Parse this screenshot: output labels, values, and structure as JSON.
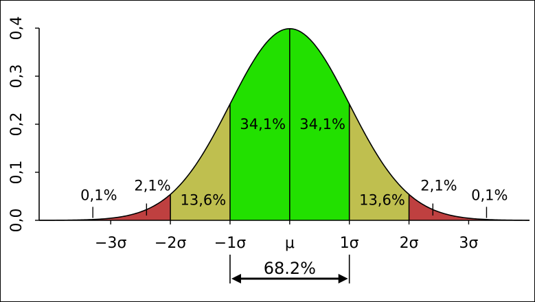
{
  "chart_data": {
    "type": "area",
    "title": "",
    "xlabel": "",
    "ylabel": "",
    "distribution": "normal",
    "xlim": [
      -4.2,
      4.02
    ],
    "ylim": [
      0,
      0.4
    ],
    "y_ticks": [
      {
        "value": 0.0,
        "label": "0,0"
      },
      {
        "value": 0.1,
        "label": "0,1"
      },
      {
        "value": 0.2,
        "label": "0,2"
      },
      {
        "value": 0.3,
        "label": "0,3"
      },
      {
        "value": 0.4,
        "label": "0,4"
      }
    ],
    "x_ticks": [
      {
        "value": -3,
        "label": "−3σ"
      },
      {
        "value": -2,
        "label": "−2σ"
      },
      {
        "value": -1,
        "label": "−1σ"
      },
      {
        "value": 0,
        "label": "μ"
      },
      {
        "value": 1,
        "label": "1σ"
      },
      {
        "value": 2,
        "label": "2σ"
      },
      {
        "value": 3,
        "label": "3σ"
      }
    ],
    "regions": [
      {
        "from": -3,
        "to": -2,
        "color": "#bf4040",
        "label": "2,1%",
        "label_x": -2.3,
        "label_y": 0.062,
        "pointer": -2.4
      },
      {
        "from": -2,
        "to": -1,
        "color": "#bfbf4f",
        "label": "13,6%",
        "label_x": -1.45,
        "label_y": 0.032
      },
      {
        "from": -1,
        "to": 0,
        "color": "#22e000",
        "label": "34,1%",
        "label_x": -0.45,
        "label_y": 0.19
      },
      {
        "from": 0,
        "to": 1,
        "color": "#22e000",
        "label": "34,1%",
        "label_x": 0.55,
        "label_y": 0.19
      },
      {
        "from": 1,
        "to": 2,
        "color": "#bfbf4f",
        "label": "13,6%",
        "label_x": 1.55,
        "label_y": 0.032
      },
      {
        "from": 2,
        "to": 3,
        "color": "#bf4040",
        "label": "2,1%",
        "label_x": 2.5,
        "label_y": 0.062,
        "pointer": 2.4
      }
    ],
    "tails": [
      {
        "label": "0,1%",
        "label_x": -3.2,
        "label_y": 0.042,
        "pointer": -3.3
      },
      {
        "label": "0,1%",
        "label_x": 3.35,
        "label_y": 0.042,
        "pointer": 3.3
      }
    ],
    "span": {
      "from": -1,
      "to": 1,
      "label": "68.2%"
    },
    "colors": {
      "line": "#000000",
      "tail_fill": "#bf4040"
    }
  }
}
